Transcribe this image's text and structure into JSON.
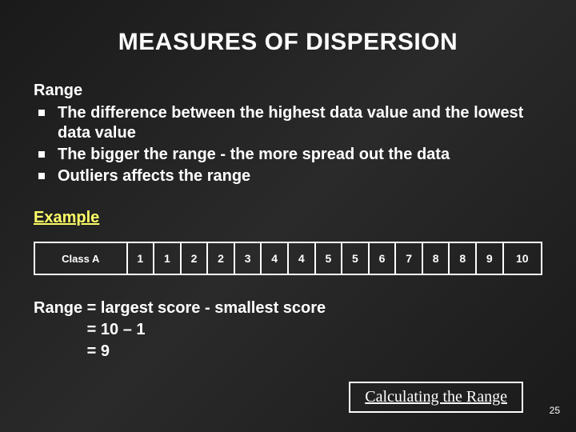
{
  "title": "MEASURES OF DISPERSION",
  "range_heading": "Range",
  "bullets": [
    "The difference between the highest data value and the lowest data value",
    "The bigger the range - the more spread out the data",
    "Outliers affects the range"
  ],
  "example_heading": "Example",
  "table": {
    "row_header": "Class A",
    "values": [
      "1",
      "1",
      "2",
      "2",
      "3",
      "4",
      "4",
      "5",
      "5",
      "6",
      "7",
      "8",
      "8",
      "9",
      "10"
    ]
  },
  "calc": {
    "line1": "Range = largest score - smallest score",
    "line2": "            = 10 – 1",
    "line3": "            = 9"
  },
  "link_text": "Calculating the Range",
  "page_number": "25",
  "colors": {
    "background_dark": "#1a1a1a",
    "text": "#ffffff",
    "example_heading": "#ffff66",
    "table_border": "#ffffff"
  }
}
